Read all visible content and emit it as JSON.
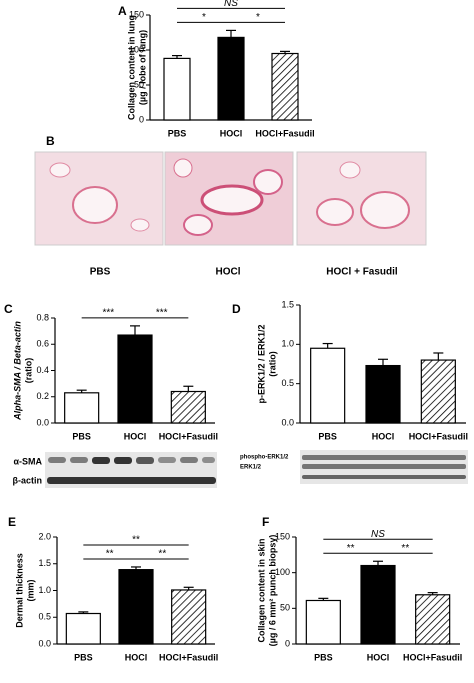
{
  "chart_data": [
    {
      "type": "bar",
      "panel": "A",
      "ylabel": [
        "Collagen content in lung",
        "(µg / lobe of lung)"
      ],
      "categories": [
        "PBS",
        "HOCl",
        "HOCl+Fasudil"
      ],
      "values": [
        88,
        118,
        95
      ],
      "errors": [
        4,
        10,
        3
      ],
      "colors": [
        "#ffffff",
        "#000000",
        "#ffffff"
      ],
      "hatch": [
        false,
        false,
        true
      ],
      "ylim": [
        0,
        150
      ],
      "yticks": [
        0,
        50,
        100,
        150
      ],
      "significance": [
        {
          "groups": [
            0,
            1
          ],
          "label": "*"
        },
        {
          "groups": [
            1,
            2
          ],
          "label": "*"
        },
        {
          "groups": [
            0,
            2
          ],
          "label": "NS"
        }
      ]
    },
    {
      "type": "bar",
      "panel": "C",
      "ylabel": [
        "Alpha-SMA / Beta-actin",
        "(ratio)"
      ],
      "categories": [
        "PBS",
        "HOCl",
        "HOCl+Fasudil"
      ],
      "values": [
        0.23,
        0.67,
        0.24
      ],
      "errors": [
        0.02,
        0.07,
        0.04
      ],
      "colors": [
        "#ffffff",
        "#000000",
        "#ffffff"
      ],
      "hatch": [
        false,
        false,
        true
      ],
      "ylim": [
        0,
        0.8
      ],
      "yticks": [
        {
          "value": 0,
          "label": "0.0"
        },
        0.2,
        0.4,
        0.6,
        0.8
      ],
      "significance": [
        {
          "groups": [
            0,
            1
          ],
          "label": "***"
        },
        {
          "groups": [
            1,
            2
          ],
          "label": "***"
        }
      ],
      "blot_labels": [
        "α-SMA",
        "β-actin"
      ]
    },
    {
      "type": "bar",
      "panel": "D",
      "ylabel": [
        "p-ERK1/2 / ERK1/2",
        "(ratio)"
      ],
      "categories": [
        "PBS",
        "HOCl",
        "HOCl+Fasudil"
      ],
      "values": [
        0.95,
        0.73,
        0.8
      ],
      "errors": [
        0.06,
        0.08,
        0.09
      ],
      "colors": [
        "#ffffff",
        "#000000",
        "#ffffff"
      ],
      "hatch": [
        false,
        false,
        true
      ],
      "ylim": [
        0,
        1.5
      ],
      "yticks": [
        {
          "value": 0,
          "label": "0.0"
        },
        0.5,
        {
          "value": 1,
          "label": "1.0"
        },
        1.5
      ],
      "significance": [],
      "blot_labels": [
        "phospho-ERK1/2",
        "ERK1/2"
      ]
    },
    {
      "type": "bar",
      "panel": "E",
      "ylabel": [
        "Dermal thickness",
        "(mm)"
      ],
      "categories": [
        "PBS",
        "HOCl",
        "HOCl+Fasudil"
      ],
      "values": [
        0.57,
        1.39,
        1.01
      ],
      "errors": [
        0.03,
        0.05,
        0.05
      ],
      "colors": [
        "#ffffff",
        "#000000",
        "#ffffff"
      ],
      "hatch": [
        false,
        false,
        true
      ],
      "ylim": [
        0,
        2
      ],
      "yticks": [
        {
          "value": 0,
          "label": "0.0"
        },
        0.5,
        {
          "value": 1,
          "label": "1.0"
        },
        1.5,
        {
          "value": 2,
          "label": "2.0"
        }
      ],
      "significance": [
        {
          "groups": [
            0,
            1
          ],
          "label": "**"
        },
        {
          "groups": [
            1,
            2
          ],
          "label": "**"
        },
        {
          "groups": [
            0,
            2
          ],
          "label": "**"
        }
      ]
    },
    {
      "type": "bar",
      "panel": "F",
      "ylabel": [
        "Collagen content in skin",
        "(µg / 6 mm² punch biopsy)"
      ],
      "categories": [
        "PBS",
        "HOCl",
        "HOCl+Fasudil"
      ],
      "values": [
        61,
        110,
        69
      ],
      "errors": [
        3,
        6,
        3
      ],
      "colors": [
        "#ffffff",
        "#000000",
        "#ffffff"
      ],
      "hatch": [
        false,
        false,
        true
      ],
      "ylim": [
        0,
        150
      ],
      "yticks": [
        0,
        50,
        100,
        150
      ],
      "significance": [
        {
          "groups": [
            0,
            1
          ],
          "label": "**"
        },
        {
          "groups": [
            1,
            2
          ],
          "label": "**"
        },
        {
          "groups": [
            0,
            2
          ],
          "label": "NS"
        }
      ]
    }
  ],
  "histology": {
    "panel": "B",
    "captions": [
      "PBS",
      "HOCl",
      "HOCl + Fasudil"
    ]
  }
}
